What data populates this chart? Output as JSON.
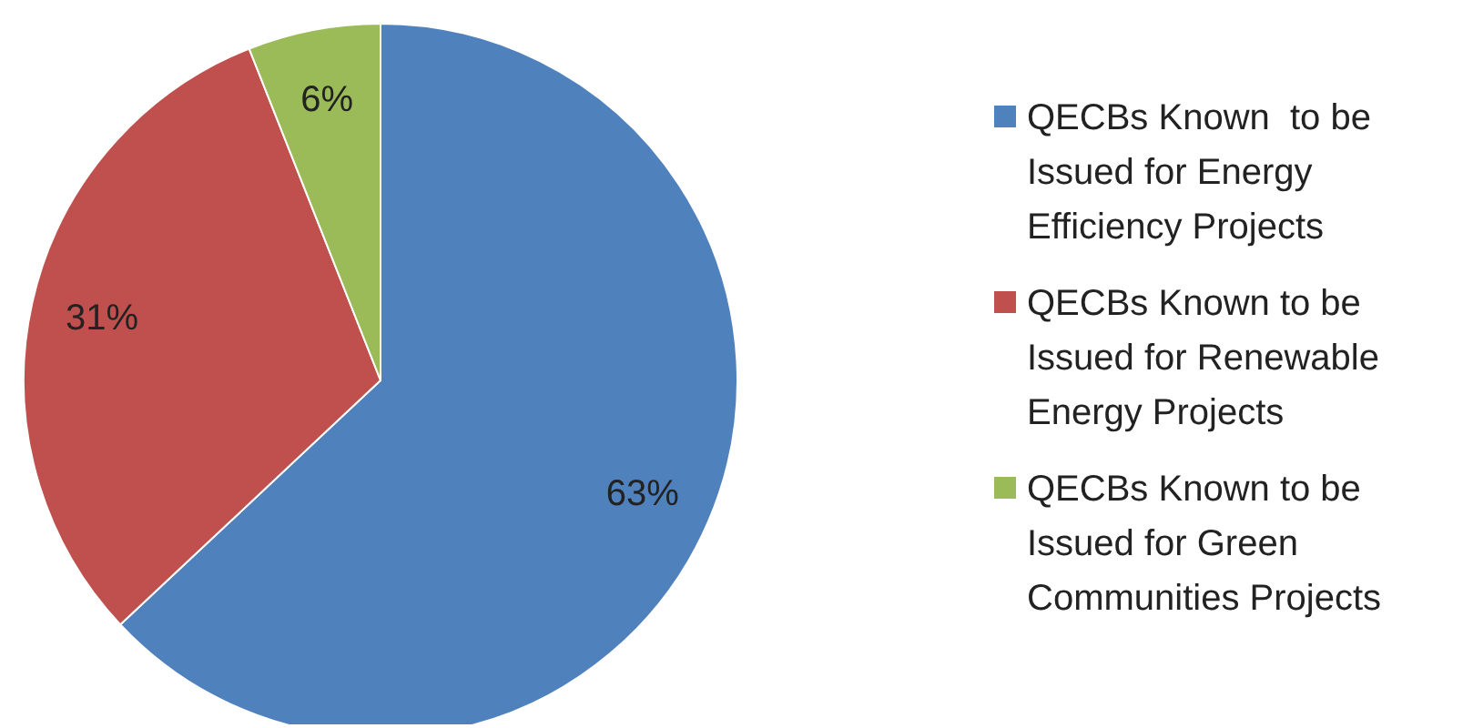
{
  "chart_data": {
    "type": "pie",
    "categories": [
      "QECBs Known  to be Issued for Energy Efficiency Projects",
      "QECBs Known to be Issued for Renewable Energy Projects",
      "QECBs Known to be Issued for Green Communities Projects"
    ],
    "values": [
      63,
      31,
      6
    ],
    "colors": [
      "#4f81bd",
      "#c0504d",
      "#9bbb59"
    ],
    "value_labels": [
      "63%",
      "31%",
      "6%"
    ],
    "legend": "right"
  }
}
